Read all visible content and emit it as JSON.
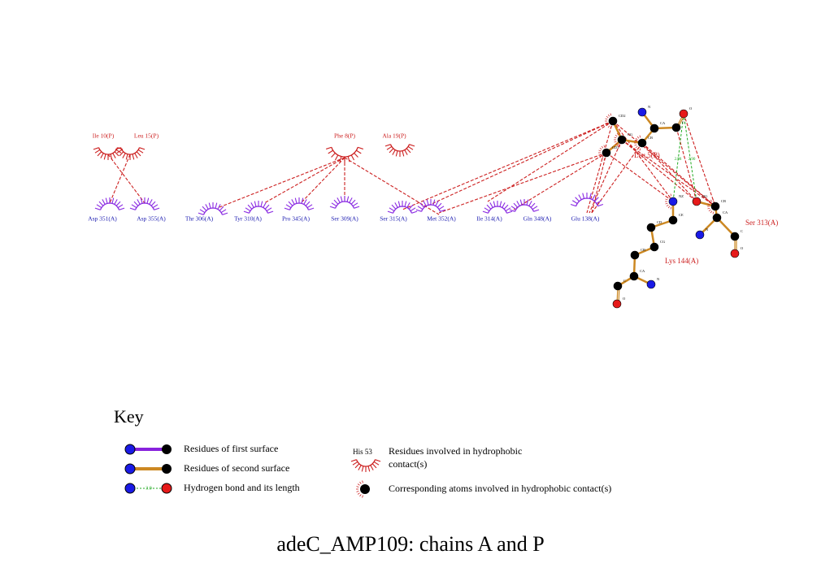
{
  "title": "adeC_AMP109: chains A and P",
  "hydrophobic_residues": [
    "Ile 10(P)",
    "Leu 15(P)",
    "Phe 8(P)",
    "Ala 19(P)",
    "Asp 351(A)",
    "Asp 355(A)",
    "Thr 306(A)",
    "Tyr 310(A)",
    "Pro 345(A)",
    "Ser 309(A)",
    "Ser 315(A)",
    "Met 352(A)",
    "Ile 314(A)",
    "Gln 348(A)",
    "Glu 138(A)"
  ],
  "ligand_residues": [
    {
      "label": "Leu 5(P)",
      "atoms": [
        "CD2",
        "N",
        "CA",
        "C",
        "O",
        "CG",
        "CB",
        "CD1"
      ]
    },
    {
      "label": "Lys 144(A)",
      "atoms": [
        "NZ",
        "CE",
        "CD",
        "CG",
        "CB",
        "CA",
        "N",
        "C",
        "O"
      ]
    },
    {
      "label": "Ser 313(A)",
      "atoms": [
        "OG",
        "CB",
        "CA",
        "N",
        "C",
        "O"
      ]
    }
  ],
  "hbond_lengths": [
    "2.98",
    "2.90"
  ],
  "key": {
    "title": "Key",
    "first_surface": "Residues of first surface",
    "second_surface": "Residues of second surface",
    "hbond": "Hydrogen bond and its length",
    "hbond_sample": "3.0",
    "hydrophobic_sample": "His 53",
    "hydrophobic": [
      "Residues involved in hydrophobic",
      "contact(s)"
    ],
    "hydrophobic_atoms": "Corresponding atoms involved in hydrophobic contact(s)"
  }
}
